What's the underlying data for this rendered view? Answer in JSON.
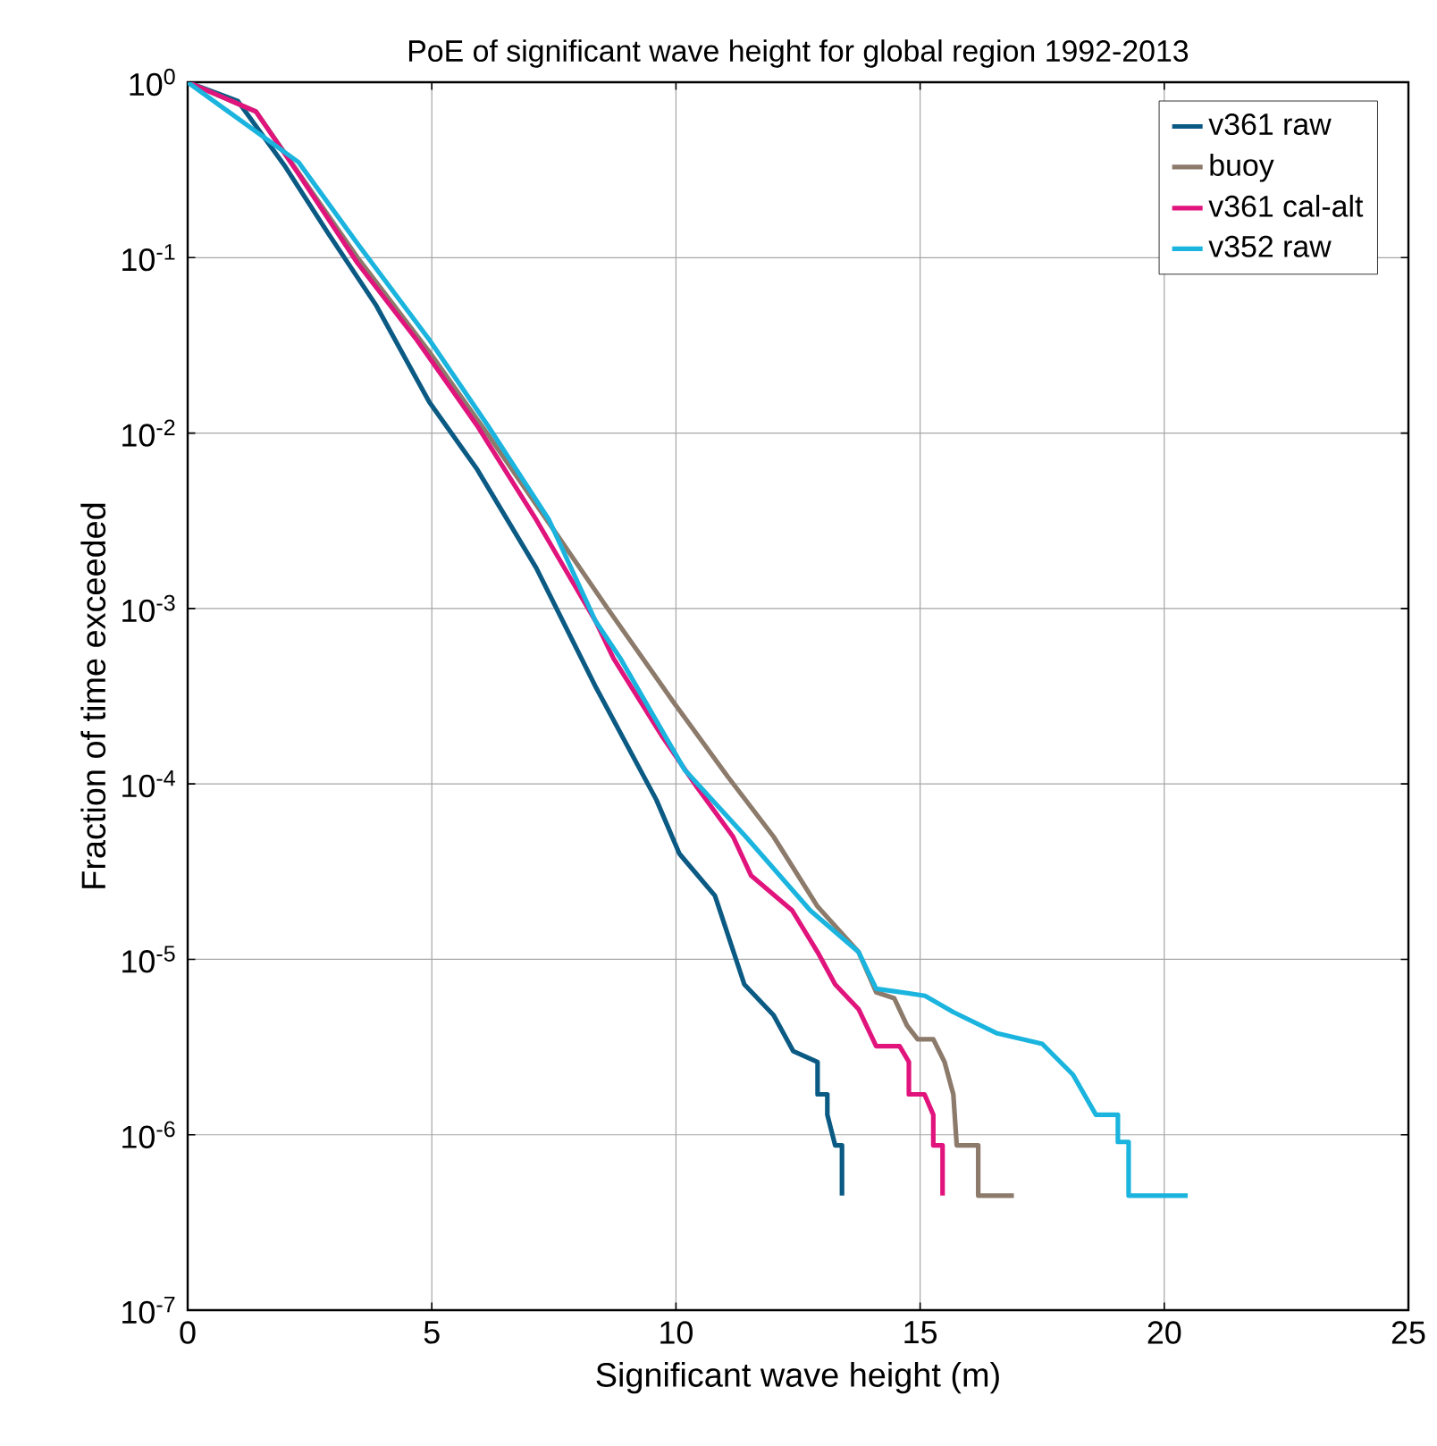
{
  "chart_data": {
    "type": "line",
    "title": "PoE of significant wave height for global region 1992-2013",
    "xlabel": "Significant wave height (m)",
    "ylabel": "Fraction of time exceeded",
    "xlim": [
      0,
      25
    ],
    "xticks": [
      0,
      5,
      10,
      15,
      20,
      25
    ],
    "ylim": [
      1e-07,
      1
    ],
    "yticks": [
      {
        "value": 1e-07,
        "label": "10$^{-7}$"
      },
      {
        "value": 1e-06,
        "label": "10$^{-6}$"
      },
      {
        "value": 1e-05,
        "label": "10$^{-5}$"
      },
      {
        "value": 0.0001,
        "label": "10$^{-4}$"
      },
      {
        "value": 0.001,
        "label": "10$^{-3}$"
      },
      {
        "value": 0.01,
        "label": "10$^{-2}$"
      },
      {
        "value": 0.1,
        "label": "10$^{-1}$"
      },
      {
        "value": 1,
        "label": "10$^{0}$"
      }
    ],
    "log": "y",
    "grid": true,
    "legend": "top right",
    "marker": "none",
    "line_style": "solid",
    "series": [
      {
        "name": "v361 raw",
        "color": "#0a5a84",
        "x": [
          0,
          1.03,
          2.0,
          2.86,
          3.85,
          4.95,
          5.93,
          7.14,
          8.35,
          9.6,
          10.07,
          10.8,
          11.4,
          12.0,
          12.4,
          12.9,
          12.9,
          13.1,
          13.1,
          13.26,
          13.4,
          13.4
        ],
        "values": [
          1,
          0.78,
          0.33,
          0.14,
          0.054,
          0.015,
          0.0062,
          0.0017,
          0.00036,
          8.1e-05,
          4e-05,
          2.3e-05,
          7.2e-06,
          4.8e-06,
          3e-06,
          2.6e-06,
          1.7e-06,
          1.7e-06,
          1.3e-06,
          8.7e-07,
          8.7e-07,
          4.5e-07
        ]
      },
      {
        "name": "buoy",
        "color": "#8c7a6b",
        "x": [
          0,
          1.4,
          3.48,
          4.95,
          6.15,
          7.62,
          8.6,
          9.96,
          11.06,
          12.0,
          12.9,
          13.74,
          14.1,
          14.47,
          14.73,
          14.95,
          15.27,
          15.5,
          15.68,
          15.75,
          16.19,
          16.19,
          16.92
        ],
        "values": [
          1,
          0.68,
          0.1,
          0.029,
          0.0098,
          0.0025,
          0.001,
          0.00029,
          0.00011,
          5e-05,
          2e-05,
          1.1e-05,
          6.5e-06,
          6e-06,
          4.2e-06,
          3.5e-06,
          3.5e-06,
          2.6e-06,
          1.7e-06,
          8.7e-07,
          8.7e-07,
          4.5e-07,
          4.5e-07
        ]
      },
      {
        "name": "v361 cal-alt",
        "color": "#e0147c",
        "x": [
          0,
          1.4,
          2.27,
          3.48,
          4.69,
          5.93,
          7.14,
          8.35,
          8.72,
          9.7,
          10.44,
          11.17,
          11.54,
          12.38,
          12.9,
          13.26,
          13.74,
          14.1,
          14.58,
          14.77,
          14.77,
          15.09,
          15.27,
          15.27,
          15.46,
          15.46
        ],
        "values": [
          1,
          0.68,
          0.3,
          0.093,
          0.034,
          0.011,
          0.0032,
          0.00085,
          0.00052,
          0.00019,
          9.5e-05,
          5e-05,
          3e-05,
          1.9e-05,
          1.1e-05,
          7.2e-06,
          5.2e-06,
          3.2e-06,
          3.2e-06,
          2.6e-06,
          1.7e-06,
          1.7e-06,
          1.3e-06,
          8.7e-07,
          8.7e-07,
          4.5e-07
        ]
      },
      {
        "name": "v352 raw",
        "color": "#1ab4de",
        "x": [
          0,
          2.27,
          3.48,
          4.95,
          6.15,
          7.4,
          8.35,
          8.86,
          10.18,
          11.43,
          12.75,
          13.74,
          14.1,
          15.1,
          15.68,
          16.56,
          17.5,
          18.13,
          18.6,
          19.05,
          19.05,
          19.27,
          19.27,
          20.48
        ],
        "values": [
          1,
          0.35,
          0.12,
          0.034,
          0.011,
          0.0032,
          0.00085,
          0.00052,
          0.00012,
          5e-05,
          1.9e-05,
          1.1e-05,
          6.8e-06,
          6.2e-06,
          5e-06,
          3.8e-06,
          3.3e-06,
          2.2e-06,
          1.3e-06,
          1.3e-06,
          9.1e-07,
          9.1e-07,
          4.5e-07,
          4.5e-07
        ]
      }
    ]
  }
}
